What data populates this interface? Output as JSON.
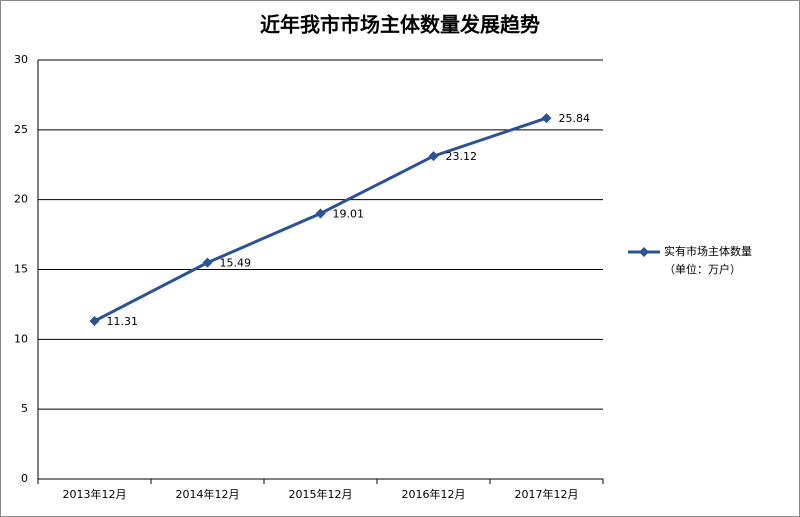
{
  "chart_data": {
    "type": "line",
    "title": "近年我市市场主体数量发展趋势",
    "categories": [
      "2013年12月",
      "2014年12月",
      "2015年12月",
      "2016年12月",
      "2017年12月"
    ],
    "series": [
      {
        "name": "实有市场主体数量",
        "color": "#2a5298",
        "values": [
          11.31,
          15.49,
          19.01,
          23.12,
          25.84
        ]
      }
    ],
    "legend_note": "（单位：万户）",
    "ylim": [
      0,
      30
    ],
    "yticks": [
      0,
      5,
      10,
      15,
      20,
      25,
      30
    ],
    "grid": true,
    "legend": "right"
  }
}
